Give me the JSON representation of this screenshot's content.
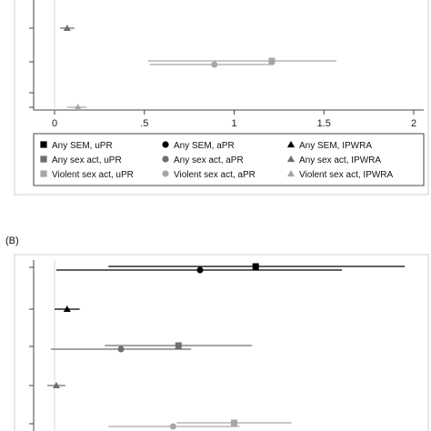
{
  "chart_data": [
    {
      "panel": "A",
      "type": "scatter",
      "xlim": [
        -0.1,
        2.05
      ],
      "x_ticks": [
        "0",
        ".5",
        "1",
        "1.5",
        "2"
      ],
      "x_tick_values": [
        0,
        0.5,
        1,
        1.5,
        2
      ],
      "reference_line_x": 0,
      "grid": false,
      "series": [
        {
          "name": "Any SEM, uPR",
          "marker": "square",
          "color": "#000000",
          "points": []
        },
        {
          "name": "Any SEM, aPR",
          "marker": "circle",
          "color": "#000000",
          "points": []
        },
        {
          "name": "Any SEM, IPWRA",
          "marker": "triangle",
          "color": "#000000",
          "points": []
        },
        {
          "name": "Any sex act, uPR",
          "marker": "square",
          "color": "#6e6e6e",
          "points": []
        },
        {
          "name": "Any sex act, aPR",
          "marker": "circle",
          "color": "#6e6e6e",
          "points": []
        },
        {
          "name": "Any sex act, IPWRA",
          "marker": "triangle",
          "color": "#6e6e6e",
          "points": [
            {
              "row": 1,
              "estimate": 0.07,
              "lower": 0.03,
              "upper": 0.11
            }
          ]
        },
        {
          "name": "Violent sex act, uPR",
          "marker": "square",
          "color": "#a6a6a6",
          "points": [
            {
              "row": 2,
              "estimate": 1.21,
              "lower": 0.52,
              "upper": 1.57
            }
          ]
        },
        {
          "name": "Violent sex act, aPR",
          "marker": "circle",
          "color": "#a6a6a6",
          "points": [
            {
              "row": 2,
              "estimate": 0.89,
              "lower": 0.53,
              "upper": 1.22
            }
          ]
        },
        {
          "name": "Violent sex act, IPWRA",
          "marker": "triangle",
          "color": "#a6a6a6",
          "points": [
            {
              "row": 4,
              "estimate": 0.13,
              "lower": 0.07,
              "upper": 0.18
            }
          ]
        }
      ],
      "rows": 5,
      "legend_position": "bottom"
    },
    {
      "panel": "B",
      "panel_label": "(B)",
      "type": "scatter",
      "xlim": [
        -0.1,
        2.05
      ],
      "reference_line_x": 0,
      "grid": false,
      "series": [
        {
          "name": "Any SEM, uPR",
          "marker": "square",
          "color": "#000000",
          "points": [
            {
              "row": 0,
              "estimate": 1.12,
              "lower": 0.3,
              "upper": 1.95
            }
          ]
        },
        {
          "name": "Any SEM, aPR",
          "marker": "circle",
          "color": "#000000",
          "points": [
            {
              "row": 0,
              "estimate": 0.81,
              "lower": 0.01,
              "upper": 1.6
            }
          ]
        },
        {
          "name": "Any SEM, IPWRA",
          "marker": "triangle",
          "color": "#000000",
          "points": [
            {
              "row": 1,
              "estimate": 0.07,
              "lower": 0.0,
              "upper": 0.14
            }
          ]
        },
        {
          "name": "Any sex act, uPR",
          "marker": "square",
          "color": "#6e6e6e",
          "points": [
            {
              "row": 2,
              "estimate": 0.69,
              "lower": 0.28,
              "upper": 1.1
            }
          ]
        },
        {
          "name": "Any sex act, aPR",
          "marker": "circle",
          "color": "#6e6e6e",
          "points": [
            {
              "row": 2,
              "estimate": 0.37,
              "lower": -0.02,
              "upper": 0.76
            }
          ]
        },
        {
          "name": "Any sex act, IPWRA",
          "marker": "triangle",
          "color": "#6e6e6e",
          "points": [
            {
              "row": 3,
              "estimate": 0.01,
              "lower": -0.04,
              "upper": 0.06
            }
          ]
        },
        {
          "name": "Violent sex act, uPR",
          "marker": "square",
          "color": "#a6a6a6",
          "points": [
            {
              "row": 4,
              "estimate": 1.0,
              "lower": 0.68,
              "upper": 1.32
            }
          ]
        },
        {
          "name": "Violent sex act, aPR",
          "marker": "circle",
          "color": "#a6a6a6",
          "points": [
            {
              "row": 4,
              "estimate": 0.66,
              "lower": 0.3,
              "upper": 1.03
            }
          ]
        }
      ],
      "rows": 5
    }
  ],
  "legend": {
    "entries": [
      {
        "label": "Any SEM, uPR",
        "marker": "square",
        "color": "#000000"
      },
      {
        "label": "Any SEM, aPR",
        "marker": "circle",
        "color": "#000000"
      },
      {
        "label": "Any SEM, IPWRA",
        "marker": "triangle",
        "color": "#000000"
      },
      {
        "label": "Any sex act, uPR",
        "marker": "square",
        "color": "#6e6e6e"
      },
      {
        "label": "Any sex act, aPR",
        "marker": "circle",
        "color": "#6e6e6e"
      },
      {
        "label": "Any sex act, IPWRA",
        "marker": "triangle",
        "color": "#6e6e6e"
      },
      {
        "label": "Violent sex act, uPR",
        "marker": "square",
        "color": "#a6a6a6"
      },
      {
        "label": "Violent sex act, aPR",
        "marker": "circle",
        "color": "#a6a6a6"
      },
      {
        "label": "Violent sex act, IPWRA",
        "marker": "triangle",
        "color": "#a6a6a6"
      }
    ]
  }
}
